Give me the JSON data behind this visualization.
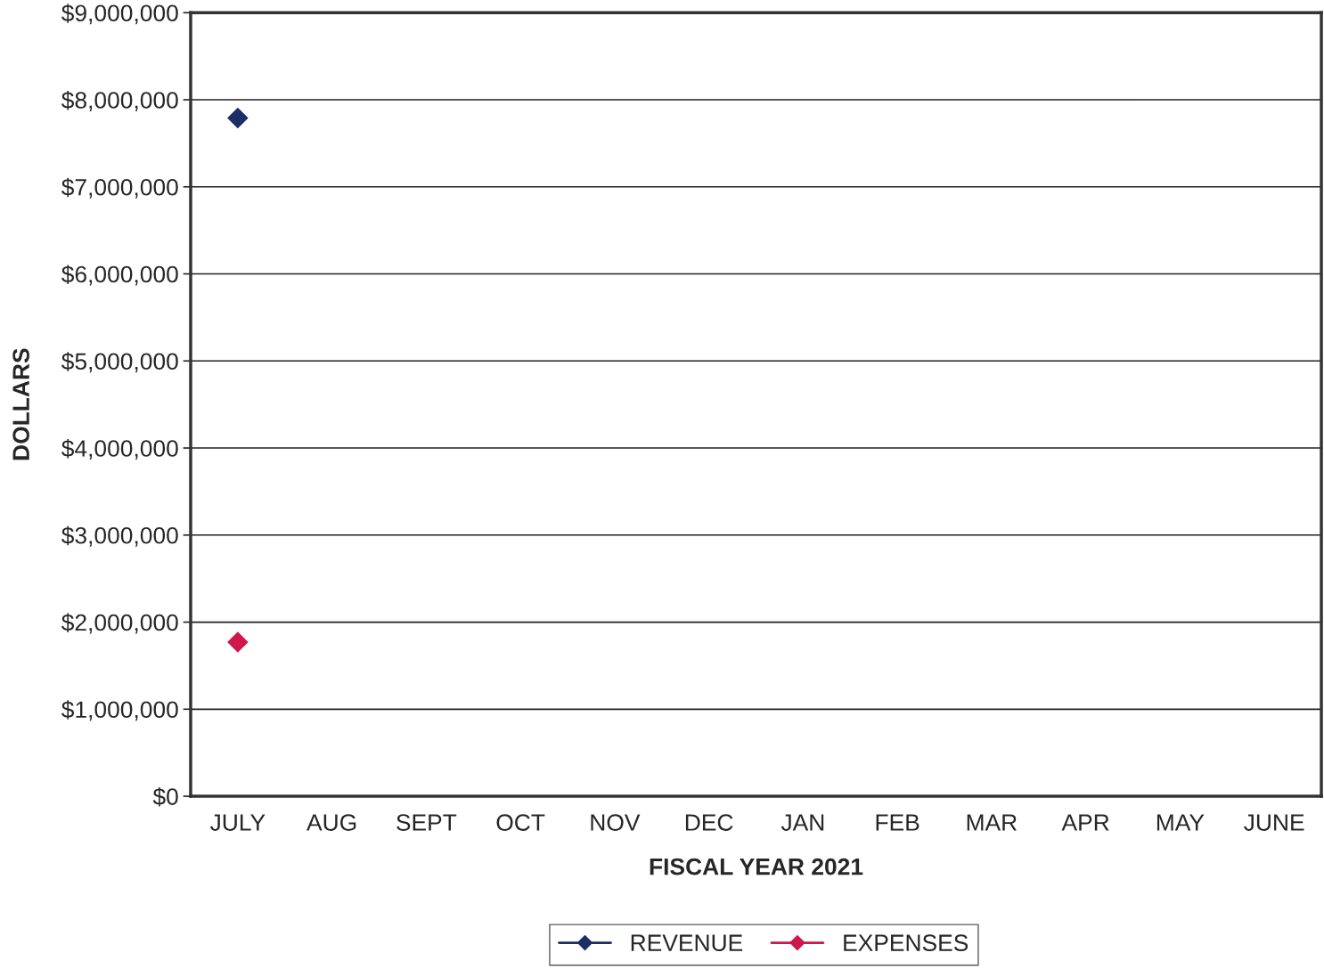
{
  "chart_data": {
    "type": "line",
    "xlabel": "FISCAL YEAR 2021",
    "ylabel": "DOLLARS",
    "categories": [
      "JULY",
      "AUG",
      "SEPT",
      "OCT",
      "NOV",
      "DEC",
      "JAN",
      "FEB",
      "MAR",
      "APR",
      "MAY",
      "JUNE"
    ],
    "series": [
      {
        "name": "REVENUE",
        "color": "#1b2f66",
        "values": [
          7790000,
          null,
          null,
          null,
          null,
          null,
          null,
          null,
          null,
          null,
          null,
          null
        ]
      },
      {
        "name": "EXPENSES",
        "color": "#d0174a",
        "values": [
          1770000,
          null,
          null,
          null,
          null,
          null,
          null,
          null,
          null,
          null,
          null,
          null
        ]
      }
    ],
    "ylim": [
      0,
      9000000
    ],
    "yticks": [
      {
        "value": 0,
        "label": "$0"
      },
      {
        "value": 1000000,
        "label": "$1,000,000"
      },
      {
        "value": 2000000,
        "label": "$2,000,000"
      },
      {
        "value": 3000000,
        "label": "$3,000,000"
      },
      {
        "value": 4000000,
        "label": "$4,000,000"
      },
      {
        "value": 5000000,
        "label": "$5,000,000"
      },
      {
        "value": 6000000,
        "label": "$6,000,000"
      },
      {
        "value": 7000000,
        "label": "$7,000,000"
      },
      {
        "value": 8000000,
        "label": "$8,000,000"
      },
      {
        "value": 9000000,
        "label": "$9,000,000"
      }
    ],
    "grid": "y",
    "legend": "bottom",
    "marker": "diamond",
    "line_style": "solid"
  }
}
